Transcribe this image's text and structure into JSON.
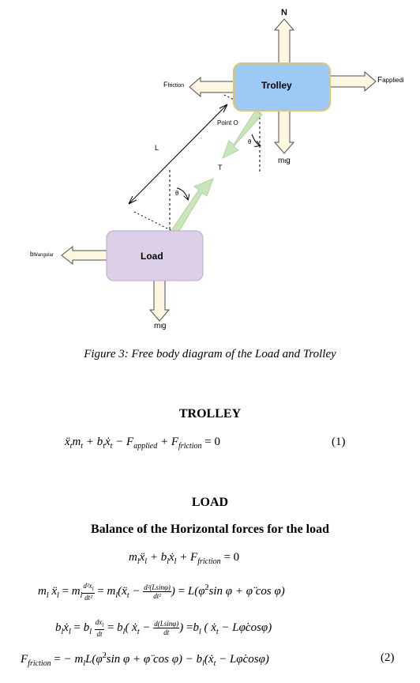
{
  "diagram": {
    "trolley_label": "Trolley",
    "load_label": "Load",
    "n_label": "N",
    "f_friction_main": "F",
    "f_friction_sub": "friction",
    "f_applied_main": "F",
    "f_applied_sub": "appliedi",
    "point_o_label": "Point O",
    "theta_label": "θ",
    "mtg_main": "m",
    "mtg_sub": "t",
    "mtg_end": "g",
    "mlg_main": "m",
    "mlg_sub": "l",
    "mlg_end": "g",
    "t_label": "T",
    "l_label": "L",
    "bv_main": "b",
    "bv_sub1": "l",
    "bv_mid": "v",
    "bv_sub2": "angular",
    "colors": {
      "trolley_fill": "#9ccaf4",
      "trolley_border": "#e3c565",
      "load_fill": "#dcd0e8",
      "load_border": "#b8a8cc",
      "arrow_fill": "#fdf6e0",
      "arrow_stroke": "#4f4f4f",
      "tension_fill": "#c5e3b3"
    }
  },
  "caption": "Figure 3: Free body diagram of the Load and Trolley",
  "sections": {
    "trolley_heading": "TROLLEY",
    "load_heading": "LOAD",
    "balance_heading": "Balance of the Horizontal forces for the load"
  },
  "equations": {
    "eq1_number": "(1)",
    "eq2_number": "(2)"
  }
}
